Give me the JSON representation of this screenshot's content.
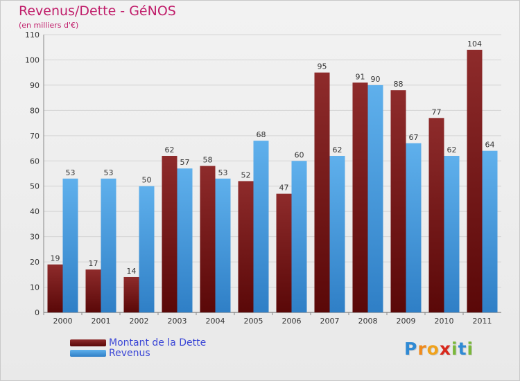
{
  "title": "Revenus/Dette - GéNOS",
  "subtitle": "(en milliers d'€)",
  "logo": {
    "letters": [
      "P",
      "r",
      "o",
      "x",
      "i",
      "t",
      "i"
    ],
    "colors": [
      "#2f8ad4",
      "#f08a1c",
      "#f0a21c",
      "#d8281c",
      "#7ab83a",
      "#2f8ad4",
      "#7ab83a"
    ]
  },
  "colors": {
    "dette": "#7a1a1a",
    "revenus": "#3c8fd6"
  },
  "chart_data": {
    "type": "bar",
    "title": "Revenus/Dette - GéNOS",
    "subtitle": "(en milliers d'€)",
    "categories": [
      "2000",
      "2001",
      "2002",
      "2003",
      "2004",
      "2005",
      "2006",
      "2007",
      "2008",
      "2009",
      "2010",
      "2011"
    ],
    "series": [
      {
        "name": "Montant de la Dette",
        "values": [
          19,
          17,
          14,
          62,
          58,
          52,
          47,
          95,
          91,
          88,
          77,
          104
        ]
      },
      {
        "name": "Revenus",
        "values": [
          53,
          53,
          50,
          57,
          53,
          68,
          60,
          62,
          90,
          67,
          62,
          64
        ]
      }
    ],
    "ylim": [
      0,
      110
    ],
    "yticks": [
      0,
      10,
      20,
      30,
      40,
      50,
      60,
      70,
      80,
      90,
      100,
      110
    ],
    "grid": true,
    "legend_position": "bottom-left"
  }
}
